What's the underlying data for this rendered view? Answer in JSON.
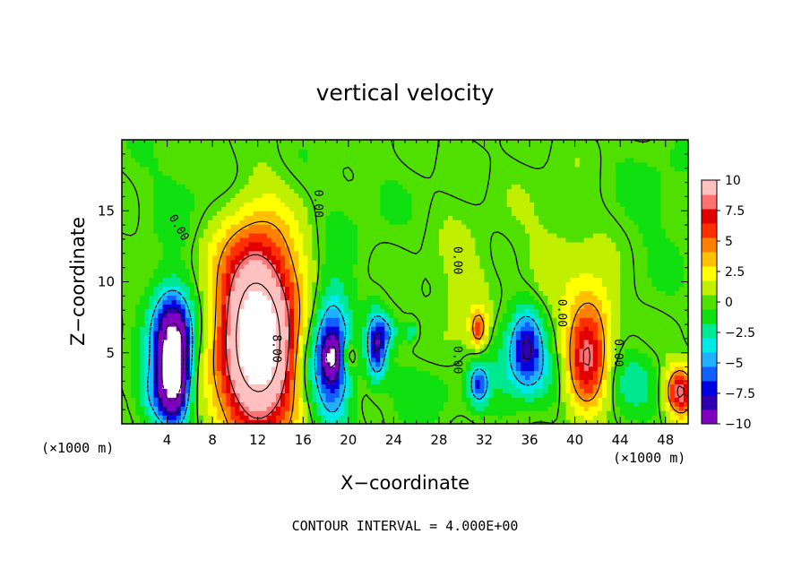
{
  "chart_data": {
    "type": "heatmap",
    "title": "vertical velocity",
    "xlabel": "X−coordinate",
    "ylabel": "Z−coordinate",
    "x_unit_left": "(×1000 m)",
    "x_unit_right": "(×1000 m)",
    "xlim": [
      0,
      50
    ],
    "ylim": [
      0,
      20
    ],
    "xticks": [
      {
        "value": 4,
        "label": "4"
      },
      {
        "value": 8,
        "label": "8"
      },
      {
        "value": 12,
        "label": "12"
      },
      {
        "value": 16,
        "label": "16"
      },
      {
        "value": 20,
        "label": "20"
      },
      {
        "value": 24,
        "label": "24"
      },
      {
        "value": 28,
        "label": "28"
      },
      {
        "value": 32,
        "label": "32"
      },
      {
        "value": 36,
        "label": "36"
      },
      {
        "value": 40,
        "label": "40"
      },
      {
        "value": 44,
        "label": "44"
      },
      {
        "value": 48,
        "label": "48"
      }
    ],
    "yticks": [
      {
        "value": 5,
        "label": "5"
      },
      {
        "value": 10,
        "label": "10"
      },
      {
        "value": 15,
        "label": "15"
      }
    ],
    "colorbar": {
      "min": -10,
      "max": 10,
      "ticks": [
        {
          "value": 10,
          "label": "10"
        },
        {
          "value": 7.5,
          "label": "7.5"
        },
        {
          "value": 5,
          "label": "5"
        },
        {
          "value": 2.5,
          "label": "2.5"
        },
        {
          "value": 0,
          "label": "0"
        },
        {
          "value": -2.5,
          "label": "−2.5"
        },
        {
          "value": -5,
          "label": "−5"
        },
        {
          "value": -7.5,
          "label": "−7.5"
        },
        {
          "value": -10,
          "label": "−10"
        }
      ],
      "colors": [
        "#8000c0",
        "#3000b0",
        "#0000e0",
        "#1060ff",
        "#20b0ff",
        "#00e8e8",
        "#00e890",
        "#10e010",
        "#50e000",
        "#c0f000",
        "#ffff00",
        "#ffc000",
        "#ff8000",
        "#ff3000",
        "#e00000",
        "#ff7070",
        "#ffc0c0"
      ]
    },
    "contour_interval_text": "CONTOUR INTERVAL = 4.000E+00",
    "contour_labels": [
      {
        "x": 13.6,
        "z": 5.3,
        "text": "8.00",
        "rotate": 90
      },
      {
        "x": 5.0,
        "z": 13.8,
        "text": "0.00",
        "rotate": 60
      },
      {
        "x": 17.3,
        "z": 15.5,
        "text": "0.00",
        "rotate": 90
      },
      {
        "x": 29.6,
        "z": 11.5,
        "text": "0.00",
        "rotate": 90
      },
      {
        "x": 29.6,
        "z": 4.5,
        "text": "0.00",
        "rotate": 90
      },
      {
        "x": 38.8,
        "z": 7.8,
        "text": "0.00",
        "rotate": 90
      },
      {
        "x": 43.8,
        "z": 5.0,
        "text": "0.00",
        "rotate": 90
      }
    ],
    "features": [
      {
        "x": 12.0,
        "z": 5.5,
        "sx": 2.3,
        "sz": 4.6,
        "amp": 15.5
      },
      {
        "x": 11.9,
        "z": 10.5,
        "sx": 3.0,
        "sz": 4.0,
        "amp": 2.5
      },
      {
        "x": 4.6,
        "z": 3.6,
        "sx": 0.9,
        "sz": 2.3,
        "amp": -14.5
      },
      {
        "x": 4.4,
        "z": 6.8,
        "sx": 1.4,
        "sz": 2.2,
        "amp": -8.0
      },
      {
        "x": 3.0,
        "z": 2.0,
        "sx": 1.2,
        "sz": 1.6,
        "amp": -4.0
      },
      {
        "x": 18.5,
        "z": 4.8,
        "sx": 1.2,
        "sz": 3.2,
        "amp": -9.0
      },
      {
        "x": 18.5,
        "z": 4.8,
        "sx": 0.5,
        "sz": 0.8,
        "amp": -6.0
      },
      {
        "x": 20.0,
        "z": 4.8,
        "sx": 0.5,
        "sz": 0.8,
        "amp": 4.0
      },
      {
        "x": 22.5,
        "z": 5.5,
        "sx": 0.6,
        "sz": 1.6,
        "amp": -8.0
      },
      {
        "x": 23.5,
        "z": 6.5,
        "sx": 0.6,
        "sz": 0.7,
        "amp": -3.0
      },
      {
        "x": 25.5,
        "z": 6.5,
        "sx": 0.4,
        "sz": 0.5,
        "amp": -3.0
      },
      {
        "x": 31.5,
        "z": 6.7,
        "sx": 0.5,
        "sz": 0.9,
        "amp": 5.5
      },
      {
        "x": 31.5,
        "z": 2.8,
        "sx": 0.6,
        "sz": 1.0,
        "amp": -6.0
      },
      {
        "x": 35.8,
        "z": 5.5,
        "sx": 1.0,
        "sz": 1.8,
        "amp": -7.0
      },
      {
        "x": 34.0,
        "z": 4.5,
        "sx": 1.5,
        "sz": 2.5,
        "amp": -2.0
      },
      {
        "x": 41.0,
        "z": 4.5,
        "sx": 1.3,
        "sz": 2.6,
        "amp": 7.5
      },
      {
        "x": 42.0,
        "z": 8.0,
        "sx": 1.5,
        "sz": 2.0,
        "amp": 2.0
      },
      {
        "x": 49.3,
        "z": 2.3,
        "sx": 0.9,
        "sz": 1.2,
        "amp": 8.5
      },
      {
        "x": 37.0,
        "z": 3.0,
        "sx": 1.5,
        "sz": 1.5,
        "amp": -2.0
      },
      {
        "x": 45.0,
        "z": 3.0,
        "sx": 1.5,
        "sz": 1.5,
        "amp": -2.5
      },
      {
        "x": 26.5,
        "z": 2.5,
        "sx": 2.0,
        "sz": 1.5,
        "amp": -1.5
      },
      {
        "x": 6.0,
        "z": 17.0,
        "sx": 3.0,
        "sz": 3.0,
        "amp": -1.0
      },
      {
        "x": 20.0,
        "z": 16.0,
        "sx": 4.0,
        "sz": 3.0,
        "amp": -0.6
      },
      {
        "x": 30.0,
        "z": 9.0,
        "sx": 2.0,
        "sz": 3.0,
        "amp": 1.2
      },
      {
        "x": 39.0,
        "z": 12.0,
        "sx": 3.0,
        "sz": 3.0,
        "amp": 1.0
      },
      {
        "x": 47.0,
        "z": 15.0,
        "sx": 3.0,
        "sz": 4.0,
        "amp": -0.8
      },
      {
        "x": 16.0,
        "z": 4.0,
        "sx": 0.8,
        "sz": 2.0,
        "amp": -1.5
      }
    ]
  }
}
